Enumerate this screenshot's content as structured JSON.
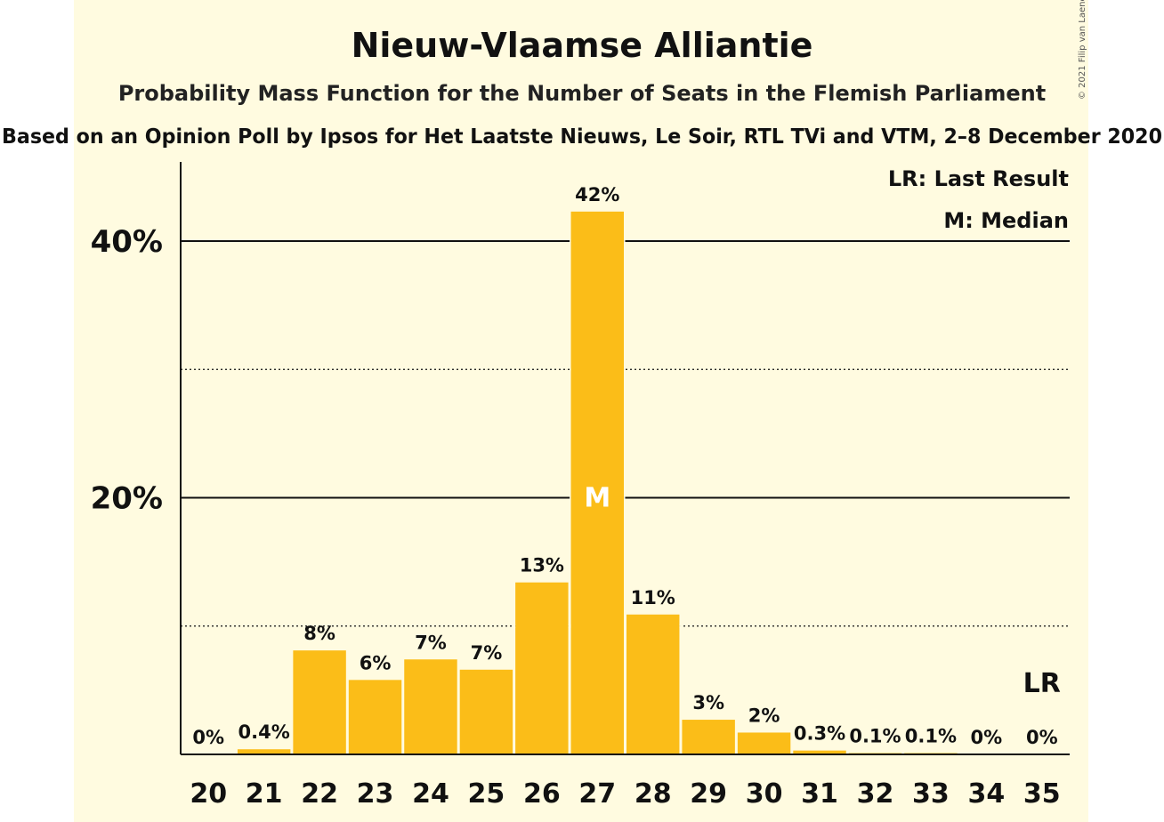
{
  "title": "Nieuw-Vlaamse Alliantie",
  "subtitle": "Probability Mass Function for the Number of Seats in the Flemish Parliament",
  "subtitle2": "Based on an Opinion Poll by Ipsos for Het Laatste Nieuws, Le Soir, RTL TVi and VTM, 2–8 December 2020",
  "copyright": "© 2021 Filip van Laenen",
  "legend": {
    "lr": "LR: Last Result",
    "m": "M: Median"
  },
  "colors": {
    "background": "#fffbe0",
    "bar": "#fbbd18",
    "text": "#111111"
  },
  "chart_data": {
    "type": "bar",
    "categories": [
      "20",
      "21",
      "22",
      "23",
      "24",
      "25",
      "26",
      "27",
      "28",
      "29",
      "30",
      "31",
      "32",
      "33",
      "34",
      "35"
    ],
    "values": [
      0,
      0.4,
      8.1,
      5.8,
      7.4,
      6.6,
      13.4,
      42.3,
      10.9,
      2.7,
      1.7,
      0.3,
      0.1,
      0.1,
      0,
      0
    ],
    "value_labels": [
      "0%",
      "0.4%",
      "8%",
      "6%",
      "7%",
      "7%",
      "13%",
      "42%",
      "11%",
      "3%",
      "2%",
      "0.3%",
      "0.1%",
      "0.1%",
      "0%",
      "0%"
    ],
    "ylim": [
      0,
      46
    ],
    "y_ticks": [
      {
        "value": 20,
        "label": "20%"
      },
      {
        "value": 40,
        "label": "40%"
      }
    ],
    "y_minor_gridlines": [
      10,
      30
    ],
    "median_category": "27",
    "median_label": "M",
    "last_result_category": "35",
    "last_result_label": "LR",
    "grid": true,
    "legend_position": "top-right"
  }
}
